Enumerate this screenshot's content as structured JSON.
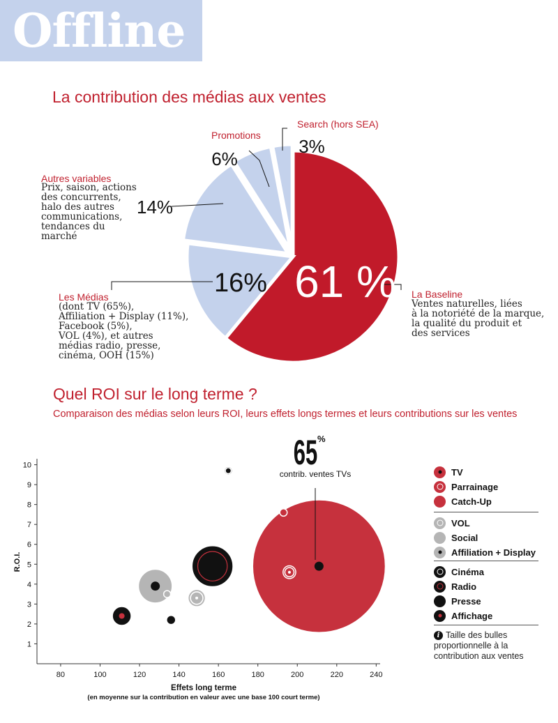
{
  "header": {
    "banner": "Offline"
  },
  "section1": {
    "title": "La contribution des médias aux ventes"
  },
  "section2": {
    "title": "Quel ROI sur le long terme ?",
    "subtitle": "Comparaison des médias selon leurs ROI, leurs effets longs termes et leurs contributions sur les ventes"
  },
  "colors": {
    "red": "#c11a2a",
    "light_blue": "#c4d2ec",
    "black": "#111111",
    "grey": "#b5b5b5"
  },
  "chart_data": [
    {
      "type": "pie",
      "title": "La contribution des médias aux ventes",
      "slices": [
        {
          "label": "La Baseline",
          "value": 61,
          "text": "61 %",
          "color": "#c11a2a",
          "description": [
            "Ventes naturelles, liées",
            "à la notoriété de la marque,",
            "la qualité du produit et",
            "des services"
          ]
        },
        {
          "label": "Les Médias",
          "value": 16,
          "text": "16%",
          "color": "#c4d2ec",
          "description": [
            "(dont TV (65%),",
            "Affiliation + Display (11%),",
            "Facebook (5%),",
            "VOL (4%), et autres",
            "médias radio, presse,",
            "cinéma, OOH (15%)"
          ]
        },
        {
          "label": "Autres variables",
          "value": 14,
          "text": "14%",
          "color": "#c4d2ec",
          "description": [
            "Prix, saison, actions",
            "des concurrents,",
            "halo des autres",
            "communications,",
            "tendances du",
            "marché"
          ]
        },
        {
          "label": "Promotions",
          "value": 6,
          "text": "6%",
          "color": "#c4d2ec",
          "description": []
        },
        {
          "label": "Search (hors SEA)",
          "value": 3,
          "text": "3%",
          "color": "#c4d2ec",
          "description": []
        }
      ]
    },
    {
      "type": "scatter",
      "title": "Quel ROI sur le long terme ?",
      "xlabel": "Effets long terme",
      "xlabel_note": "(en moyenne sur la contribution en valeur avec une base 100 court terme)",
      "ylabel": "R.O.I.",
      "xlim": [
        68,
        242
      ],
      "ylim": [
        0,
        10.3
      ],
      "xticks": [
        80,
        100,
        120,
        140,
        160,
        180,
        200,
        220,
        240
      ],
      "yticks": [
        1,
        2,
        3,
        4,
        5,
        6,
        7,
        8,
        9,
        10
      ],
      "annotation": {
        "value": "65",
        "unit": "%",
        "text": "contrib. ventes TVs",
        "x": 211,
        "y": 4.9
      },
      "note": "Taille des bulles proportionnelle à la contribution aux ventes",
      "series": [
        {
          "name": "TV",
          "fill": "#c6313d",
          "ring": "",
          "dot": "#111111",
          "x": 211,
          "y": 4.9,
          "size": 65
        },
        {
          "name": "Parrainage",
          "fill": "#c6313d",
          "ring": "#ffffff",
          "dot": "",
          "x": 196,
          "y": 4.6,
          "size": 0.6
        },
        {
          "name": "Catch-Up",
          "fill": "#c6313d",
          "ring": "",
          "dot": "",
          "x": 193,
          "y": 7.6,
          "size": 0.2
        },
        {
          "name": "VOL",
          "fill": "#b5b5b5",
          "ring": "#ffffff",
          "dot": "",
          "x": 149,
          "y": 3.3,
          "size": 1.1
        },
        {
          "name": "Social",
          "fill": "#b5b5b5",
          "ring": "",
          "dot": "",
          "x": 134,
          "y": 3.5,
          "size": 0.1
        },
        {
          "name": "Affiliation + Display",
          "fill": "#b5b5b5",
          "ring": "",
          "dot": "#111111",
          "x": 128,
          "y": 3.9,
          "size": 4.2
        },
        {
          "name": "Cinéma",
          "fill": "#111111",
          "ring": "#ffffff",
          "dot": "",
          "x": 165,
          "y": 9.7,
          "size": 0.25
        },
        {
          "name": "Radio",
          "fill": "#111111",
          "ring": "#c6313d",
          "dot": "",
          "x": 157,
          "y": 4.9,
          "size": 6.2
        },
        {
          "name": "Presse",
          "fill": "#111111",
          "ring": "",
          "dot": "",
          "x": 136,
          "y": 2.2,
          "size": 0.3
        },
        {
          "name": "Affichage",
          "fill": "#111111",
          "ring": "",
          "dot": "#c6313d",
          "x": 111,
          "y": 2.4,
          "size": 1.3
        }
      ]
    }
  ]
}
